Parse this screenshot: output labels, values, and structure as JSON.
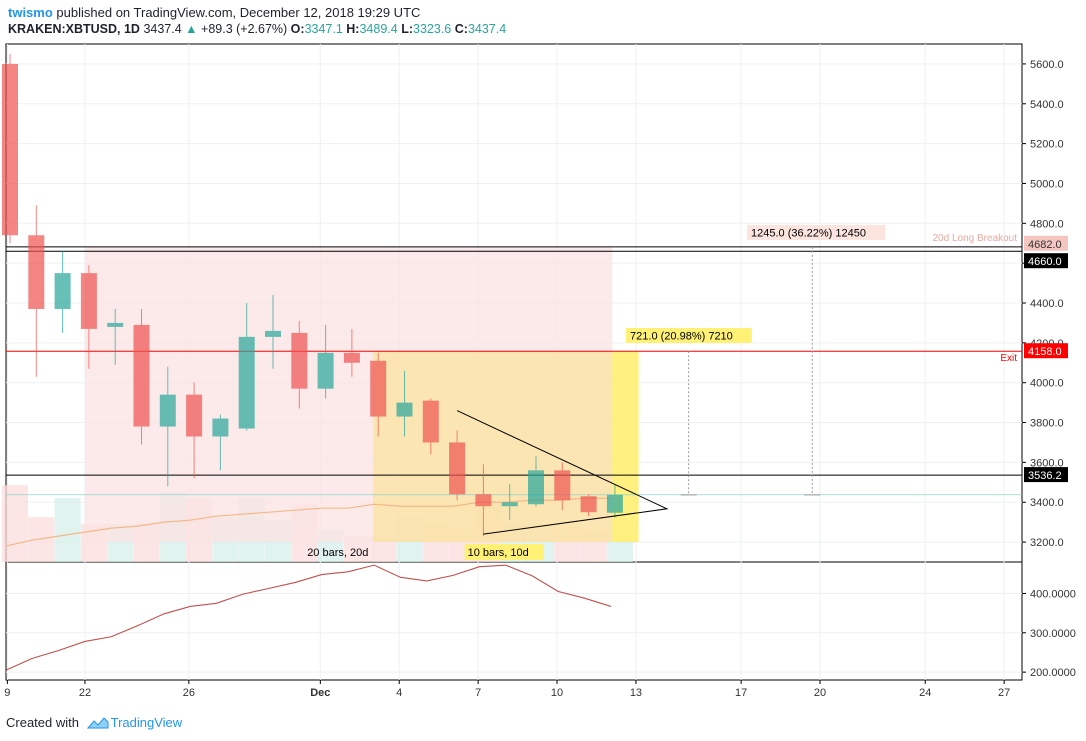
{
  "header": {
    "user": "twismo",
    "published": "published on TradingView.com, December 12, 2018 19:29 UTC",
    "symbol": "KRAKEN:XBTUSD, 1D",
    "last": "3437.4",
    "change": "+89.3 (+2.67%)",
    "o_label": "O:",
    "o": "3347.1",
    "h_label": "H:",
    "h": "3489.4",
    "l_label": "L:",
    "l": "3323.6",
    "c_label": "C:",
    "c": "3437.4"
  },
  "footer": {
    "created_with": "Created with",
    "brand": "TradingView"
  },
  "colors": {
    "up": "#26a69a",
    "down": "#ef5350",
    "exit": "#ff0000",
    "target": "#f5c6c0",
    "highlight": "#fff176"
  },
  "chart_data": {
    "type": "candlestick",
    "x_ticks": [
      "9",
      "22",
      "26",
      "Dec",
      "4",
      "7",
      "10",
      "13",
      "17",
      "20",
      "24",
      "27"
    ],
    "ylim": [
      3100,
      5700
    ],
    "y_ticks": [
      "5600.0",
      "5400.0",
      "5200.0",
      "5000.0",
      "4800.0",
      "4600.0",
      "4400.0",
      "4200.0",
      "4000.0",
      "3800.0",
      "3600.0",
      "3400.0",
      "3200.0"
    ],
    "candles": [
      {
        "o": 5600,
        "h": 5650,
        "l": 4700,
        "c": 4740
      },
      {
        "o": 4740,
        "h": 4890,
        "l": 4030,
        "c": 4370
      },
      {
        "o": 4370,
        "h": 4660,
        "l": 4250,
        "c": 4550
      },
      {
        "o": 4550,
        "h": 4590,
        "l": 4070,
        "c": 4270
      },
      {
        "o": 4280,
        "h": 4370,
        "l": 4090,
        "c": 4300
      },
      {
        "o": 4290,
        "h": 4370,
        "l": 3690,
        "c": 3780
      },
      {
        "o": 3780,
        "h": 4080,
        "l": 3480,
        "c": 3940
      },
      {
        "o": 3940,
        "h": 4000,
        "l": 3520,
        "c": 3730
      },
      {
        "o": 3730,
        "h": 3840,
        "l": 3560,
        "c": 3820
      },
      {
        "o": 3770,
        "h": 4400,
        "l": 3760,
        "c": 4230
      },
      {
        "o": 4230,
        "h": 4440,
        "l": 4070,
        "c": 4260
      },
      {
        "o": 4250,
        "h": 4310,
        "l": 3870,
        "c": 3970
      },
      {
        "o": 3970,
        "h": 4290,
        "l": 3920,
        "c": 4150
      },
      {
        "o": 4150,
        "h": 4270,
        "l": 4030,
        "c": 4100
      },
      {
        "o": 4110,
        "h": 4150,
        "l": 3730,
        "c": 3830
      },
      {
        "o": 3830,
        "h": 4060,
        "l": 3730,
        "c": 3900
      },
      {
        "o": 3910,
        "h": 3920,
        "l": 3640,
        "c": 3700
      },
      {
        "o": 3700,
        "h": 3760,
        "l": 3410,
        "c": 3440
      },
      {
        "o": 3440,
        "h": 3590,
        "l": 3230,
        "c": 3380
      },
      {
        "o": 3380,
        "h": 3490,
        "l": 3310,
        "c": 3400
      },
      {
        "o": 3390,
        "h": 3630,
        "l": 3380,
        "c": 3560
      },
      {
        "o": 3560,
        "h": 3600,
        "l": 3360,
        "c": 3410
      },
      {
        "o": 3430,
        "h": 3440,
        "l": 3330,
        "c": 3350
      },
      {
        "o": 3347.1,
        "h": 3489.4,
        "l": 3323.6,
        "c": 3437.4
      }
    ],
    "moving_average": [
      3180,
      3210,
      3230,
      3250,
      3270,
      3280,
      3300,
      3310,
      3330,
      3340,
      3350,
      3360,
      3370,
      3370,
      3390,
      3380,
      3380,
      3380,
      3400,
      3400,
      3410,
      3410,
      3420,
      3420
    ],
    "volume": [
      0.6,
      0.35,
      0.5,
      0.3,
      0.3,
      0.3,
      0.55,
      0.5,
      0.35,
      0.5,
      0.33,
      0.45,
      0.25,
      0.2,
      0.2,
      0.35,
      0.3,
      0.28,
      0.45,
      0.3,
      0.3,
      0.28,
      0.25,
      0.22
    ],
    "levels": [
      {
        "value": 4682.0,
        "label": "4682.0",
        "note": "20d Long Breakout"
      },
      {
        "value": 4660.0,
        "label": "4660.0"
      },
      {
        "value": 4158.0,
        "label": "4158.0",
        "note": "Exit"
      },
      {
        "value": 3536.2,
        "label": "3536.2"
      }
    ],
    "measure_boxes": [
      {
        "text": "1245.0 (36.22%) 12450"
      },
      {
        "text": "721.0 (20.98%) 7210"
      }
    ],
    "range_labels": [
      "20 bars, 20d",
      "10 bars, 10d"
    ],
    "indicator": {
      "ylim": [
        180,
        480
      ],
      "y_ticks": [
        "400.0000",
        "300.0000",
        "200.0000"
      ],
      "values": [
        205,
        235,
        255,
        278,
        290,
        318,
        348,
        367,
        375,
        398,
        413,
        428,
        448,
        455,
        472,
        441,
        432,
        446,
        468,
        472,
        445,
        405,
        388,
        367
      ]
    }
  }
}
